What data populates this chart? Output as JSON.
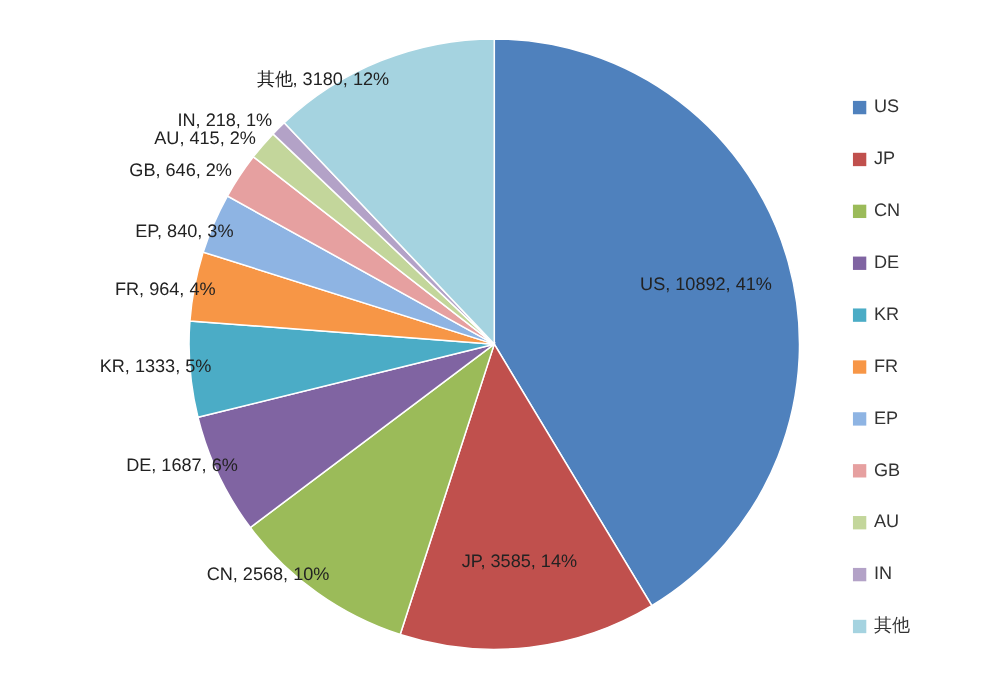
{
  "chart_data": {
    "type": "pie",
    "categories": [
      "US",
      "JP",
      "CN",
      "DE",
      "KR",
      "FR",
      "EP",
      "GB",
      "AU",
      "IN",
      "其他"
    ],
    "values": [
      10892,
      3585,
      2568,
      1687,
      1333,
      964,
      840,
      646,
      415,
      218,
      3180
    ],
    "colors": [
      "#4f81bd",
      "#c0504d",
      "#9bbb59",
      "#8064a2",
      "#4bacc6",
      "#f79646",
      "#8eb4e3",
      "#e6a0a0",
      "#c3d69b",
      "#b3a2c7",
      "#a5d3e0"
    ],
    "value_labels": [
      "US, 10892, 41%",
      "JP, 3585, 14%",
      "CN, 2568, 10%",
      "DE, 1687, 6%",
      "KR, 1333, 5%",
      "FR, 964, 4%",
      "EP, 840, 3%",
      "GB, 646, 2%",
      "AU, 415, 2%",
      "IN, 218, 1%",
      "其他, 3180, 12%"
    ],
    "legend": "right"
  }
}
